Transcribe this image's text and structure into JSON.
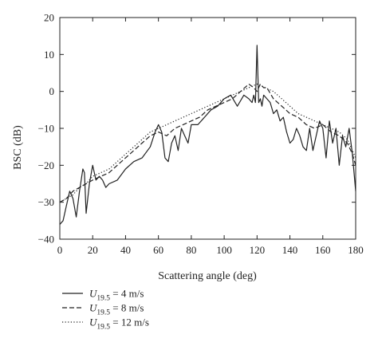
{
  "chart_data": {
    "type": "line",
    "xlabel": "Scattering angle (deg)",
    "ylabel": "BSC (dB)",
    "xlim": [
      0,
      180
    ],
    "ylim": [
      -40,
      20
    ],
    "x_ticks": [
      "0",
      "20",
      "40",
      "60",
      "80",
      "100",
      "120",
      "140",
      "160",
      "180"
    ],
    "y_ticks": [
      "20",
      "10",
      "0",
      "−10",
      "−20",
      "−30",
      "−40"
    ],
    "legend_position": "bottom-left",
    "grid": false,
    "series": [
      {
        "name": "U19.5 = 4 m/s",
        "legend": {
          "symbol": "U",
          "sub": "19.5",
          "rest": " = 4 m/s"
        },
        "style": "solid",
        "x": [
          0,
          2,
          4,
          6,
          8,
          10,
          12,
          14,
          15,
          16,
          18,
          20,
          22,
          24,
          26,
          28,
          30,
          35,
          40,
          45,
          50,
          55,
          58,
          60,
          62,
          64,
          66,
          68,
          70,
          72,
          74,
          76,
          78,
          80,
          84,
          88,
          92,
          96,
          100,
          104,
          108,
          112,
          115,
          117,
          118,
          119,
          120,
          121,
          122,
          123,
          124,
          126,
          128,
          130,
          132,
          134,
          136,
          138,
          140,
          142,
          144,
          146,
          148,
          150,
          152,
          154,
          156,
          158,
          160,
          162,
          164,
          166,
          168,
          170,
          172,
          174,
          176,
          178,
          180
        ],
        "y": [
          -36,
          -35,
          -31,
          -27,
          -29,
          -34,
          -27,
          -21,
          -22,
          -33,
          -25,
          -20,
          -24,
          -23,
          -24,
          -26,
          -25,
          -24,
          -21,
          -19,
          -18,
          -15,
          -11,
          -9,
          -11,
          -18,
          -19,
          -14,
          -12,
          -16,
          -10,
          -12,
          -14,
          -9,
          -9,
          -7,
          -5,
          -4,
          -2,
          -1,
          -4,
          -1,
          -2,
          -3,
          -1,
          -3,
          12.5,
          -3,
          -2,
          -4,
          -1,
          -2,
          -3,
          -6,
          -5,
          -8,
          -7,
          -11,
          -14,
          -13,
          -10,
          -12,
          -15,
          -16,
          -10,
          -16,
          -12,
          -8,
          -10,
          -18,
          -8,
          -14,
          -10,
          -20,
          -12,
          -15,
          -10,
          -17,
          -27
        ]
      },
      {
        "name": "U19.5 = 8 m/s",
        "legend": {
          "symbol": "U",
          "sub": "19.5",
          "rest": " = 8 m/s"
        },
        "style": "dashed",
        "x": [
          0,
          4,
          8,
          12,
          16,
          20,
          25,
          30,
          35,
          40,
          45,
          50,
          55,
          60,
          65,
          70,
          75,
          80,
          85,
          90,
          95,
          100,
          105,
          110,
          115,
          118,
          120,
          122,
          124,
          126,
          130,
          135,
          140,
          145,
          150,
          155,
          160,
          165,
          170,
          175,
          178,
          180
        ],
        "y": [
          -30,
          -29,
          -27,
          -26,
          -25,
          -24,
          -23,
          -22,
          -20,
          -18,
          -16,
          -14,
          -12,
          -11,
          -12,
          -10,
          -9,
          -8,
          -7,
          -5,
          -4,
          -3,
          -2,
          0,
          2,
          1,
          0,
          2,
          1,
          1,
          -2,
          -4,
          -6,
          -7,
          -9,
          -10,
          -9,
          -11,
          -12,
          -14,
          -17,
          -20
        ]
      },
      {
        "name": "U19.5 = 12 m/s",
        "legend": {
          "symbol": "U",
          "sub": "19.5",
          "rest": " = 12 m/s"
        },
        "style": "dotted",
        "x": [
          0,
          4,
          8,
          12,
          16,
          20,
          25,
          30,
          35,
          40,
          45,
          50,
          55,
          60,
          65,
          70,
          75,
          80,
          85,
          90,
          95,
          100,
          105,
          110,
          115,
          120,
          125,
          130,
          135,
          140,
          145,
          150,
          155,
          160,
          165,
          170,
          175,
          180
        ],
        "y": [
          -30,
          -29,
          -28,
          -26,
          -25,
          -23,
          -22,
          -21,
          -19,
          -17,
          -15,
          -13,
          -11,
          -10,
          -9,
          -8,
          -7,
          -6,
          -5,
          -4,
          -3,
          -2,
          -1,
          0,
          1,
          2,
          1,
          0,
          -2,
          -4,
          -6,
          -7,
          -8,
          -9,
          -10,
          -11,
          -13,
          -18
        ]
      }
    ]
  }
}
